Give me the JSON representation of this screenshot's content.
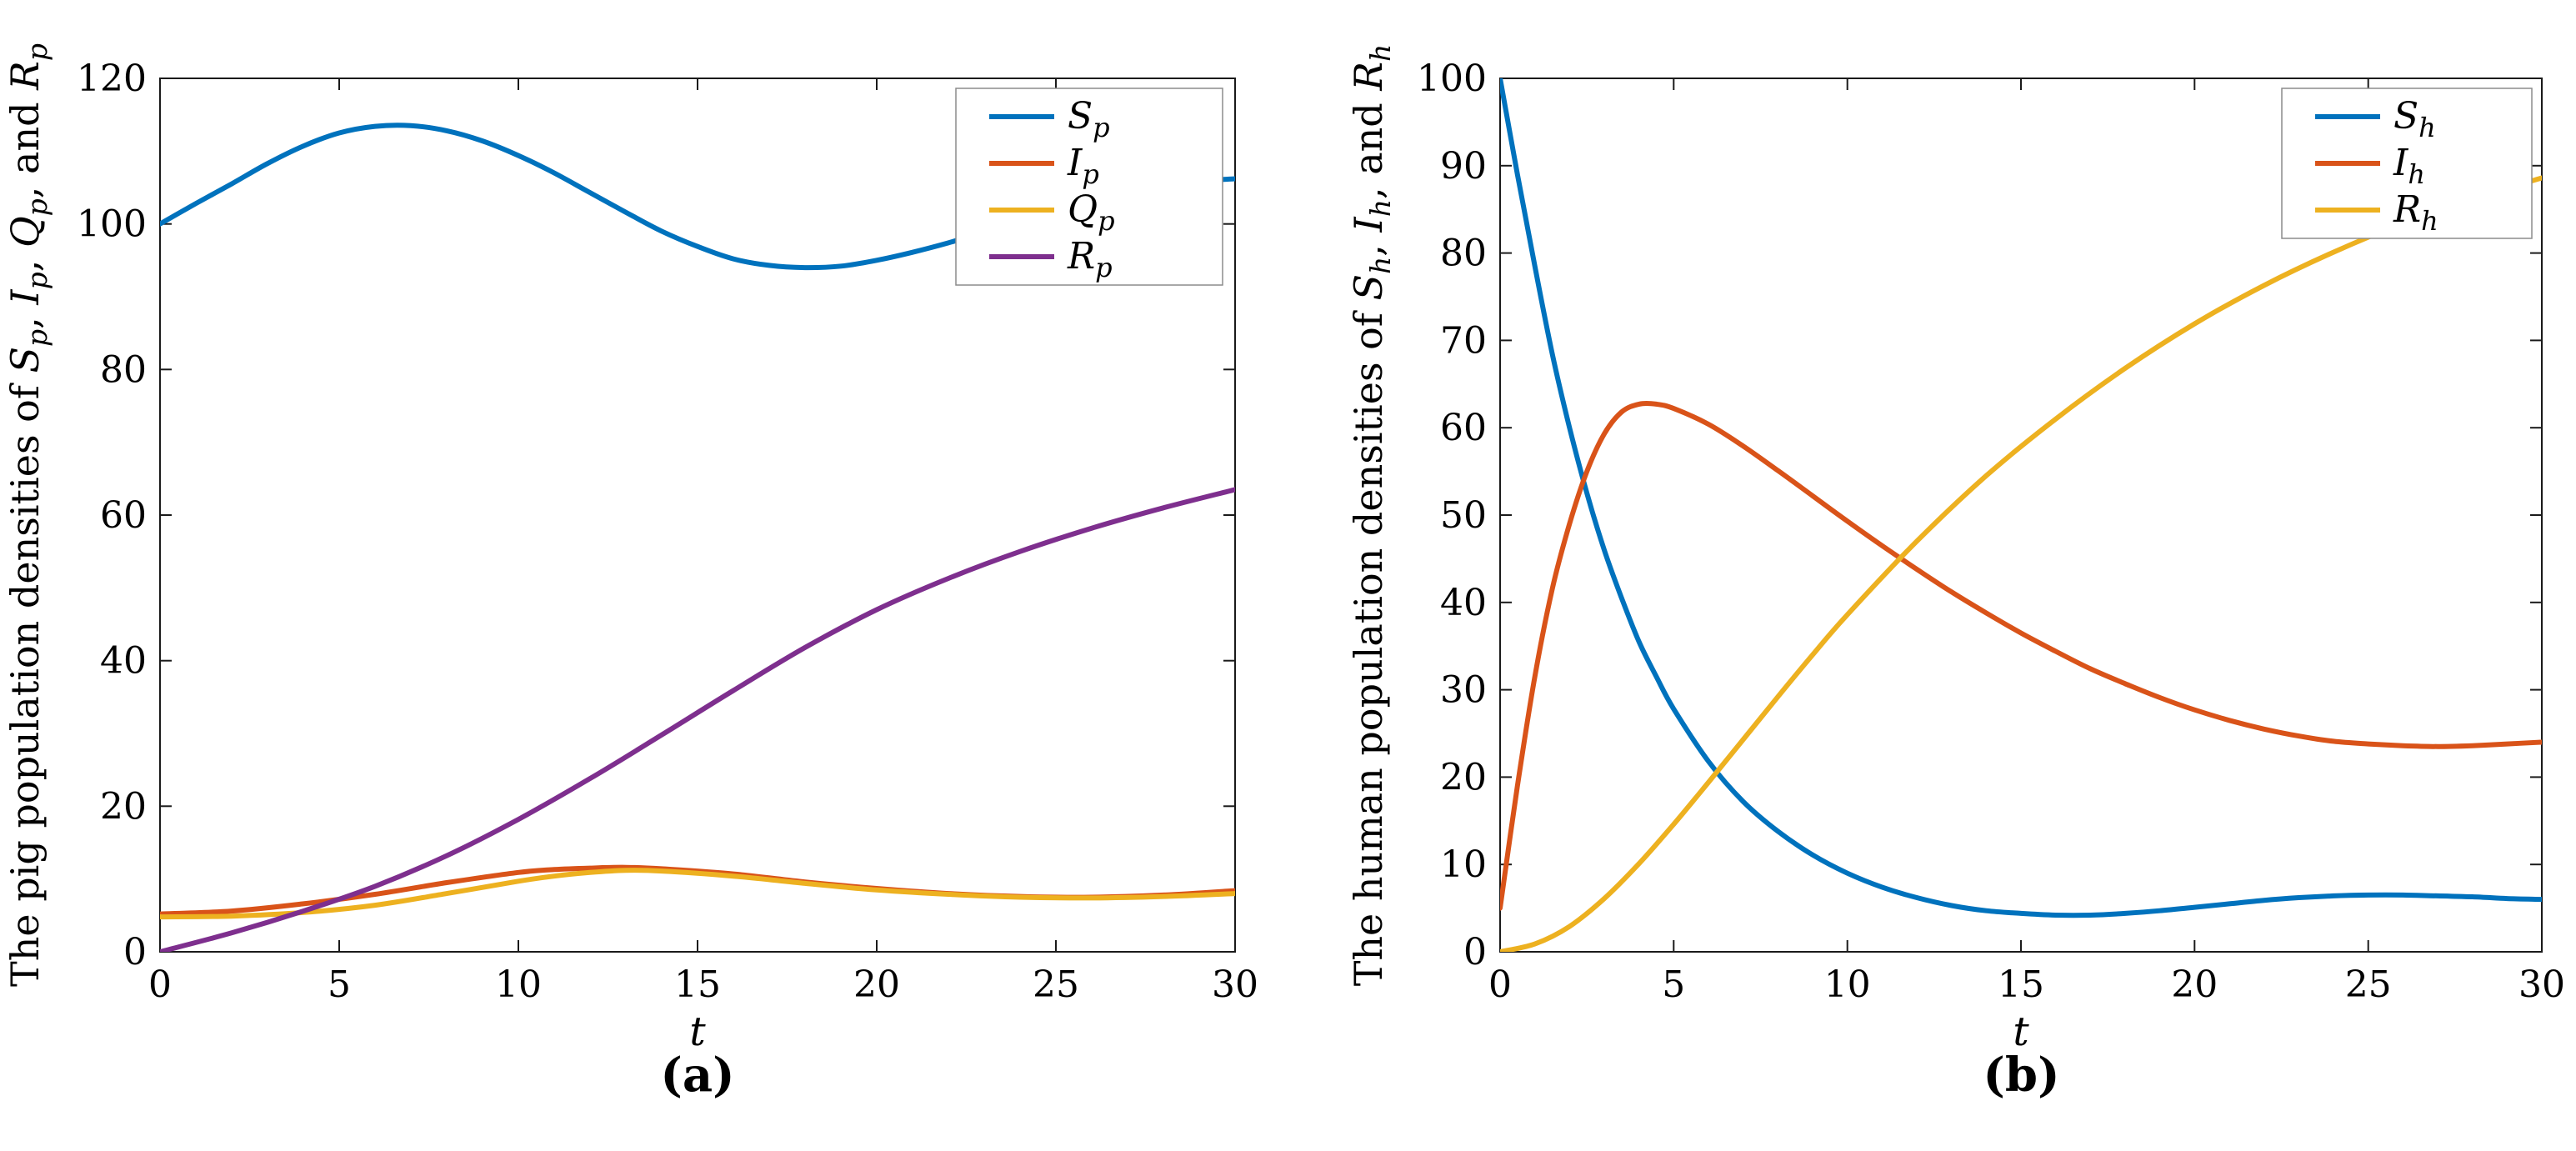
{
  "figure": {
    "captions": {
      "a": "(a)",
      "b": "(b)"
    },
    "colors": {
      "blue": "#0072BD",
      "orange": "#D95319",
      "yellow": "#EDB120",
      "purple": "#7E2F8E",
      "axis": "#1a1a1a",
      "text": "#000000",
      "legend_border": "#8c8c8c"
    }
  },
  "chart_data": [
    {
      "id": "a",
      "type": "line",
      "title": "",
      "xlabel": "t",
      "ylabel": "The pig population densities of S_p, I_p, Q_p, and R_p",
      "xlim": [
        0,
        30
      ],
      "ylim": [
        0,
        120
      ],
      "xticks": [
        0,
        5,
        10,
        15,
        20,
        25,
        30
      ],
      "yticks": [
        0,
        20,
        40,
        60,
        80,
        100,
        120
      ],
      "grid": false,
      "legend_position": "top-right",
      "series": [
        {
          "name": "S_p",
          "color": "#0072BD",
          "x": [
            0,
            1,
            2,
            3,
            4,
            5,
            6,
            7,
            8,
            9,
            10,
            11,
            12,
            13,
            14,
            15,
            16,
            17,
            18,
            19,
            20,
            21,
            22,
            23,
            24,
            25,
            26,
            27,
            28,
            29,
            30
          ],
          "y": [
            100,
            102.8,
            105.5,
            108.3,
            110.7,
            112.5,
            113.4,
            113.5,
            112.8,
            111.4,
            109.4,
            107,
            104.3,
            101.6,
            99,
            96.9,
            95.2,
            94.3,
            94,
            94.2,
            95,
            96.1,
            97.4,
            98.9,
            100.4,
            101.9,
            103.3,
            104.4,
            105.3,
            105.9,
            106.2
          ]
        },
        {
          "name": "I_p",
          "color": "#D95319",
          "x": [
            0,
            2,
            4,
            6,
            8,
            10,
            11,
            12,
            13,
            14,
            16,
            18,
            20,
            22,
            24,
            26,
            28,
            30
          ],
          "y": [
            5.2,
            5.6,
            6.6,
            7.9,
            9.5,
            10.9,
            11.3,
            11.5,
            11.6,
            11.4,
            10.7,
            9.6,
            8.7,
            8.0,
            7.6,
            7.5,
            7.8,
            8.4
          ]
        },
        {
          "name": "Q_p",
          "color": "#EDB120",
          "x": [
            0,
            2,
            4,
            6,
            8,
            10,
            11,
            12,
            13,
            14,
            16,
            18,
            20,
            22,
            24,
            26,
            28,
            30
          ],
          "y": [
            4.8,
            4.9,
            5.4,
            6.4,
            8.0,
            9.7,
            10.4,
            10.9,
            11.2,
            11.1,
            10.4,
            9.4,
            8.5,
            7.9,
            7.5,
            7.4,
            7.6,
            8.0
          ]
        },
        {
          "name": "R_p",
          "color": "#7E2F8E",
          "x": [
            0,
            2,
            4,
            6,
            8,
            10,
            12,
            14,
            16,
            18,
            20,
            22,
            24,
            26,
            28,
            30
          ],
          "y": [
            0,
            2.6,
            5.6,
            9.0,
            13.2,
            18.2,
            23.8,
            29.8,
            35.9,
            41.8,
            47.0,
            51.3,
            55.0,
            58.2,
            61.0,
            63.5
          ]
        }
      ]
    },
    {
      "id": "b",
      "type": "line",
      "title": "",
      "xlabel": "t",
      "ylabel": "The human population densities of S_h, I_h, and R_h",
      "xlim": [
        0,
        30
      ],
      "ylim": [
        0,
        100
      ],
      "xticks": [
        0,
        5,
        10,
        15,
        20,
        25,
        30
      ],
      "yticks": [
        0,
        10,
        20,
        30,
        40,
        50,
        60,
        70,
        80,
        90,
        100
      ],
      "grid": false,
      "legend_position": "top-right",
      "series": [
        {
          "name": "S_h",
          "color": "#0072BD",
          "x": [
            0,
            0.5,
            1,
            1.5,
            2,
            2.5,
            3,
            3.5,
            4,
            4.5,
            5,
            6,
            7,
            8,
            9,
            10,
            11,
            12,
            13,
            14,
            15,
            16,
            17,
            18,
            19,
            20,
            21,
            22,
            23,
            24,
            25,
            26,
            27,
            28,
            29,
            30
          ],
          "y": [
            100,
            89,
            78.5,
            68.5,
            60,
            52.5,
            46,
            40.5,
            35.5,
            31.5,
            27.8,
            21.8,
            17.2,
            13.8,
            11.1,
            9.0,
            7.4,
            6.2,
            5.3,
            4.7,
            4.4,
            4.2,
            4.2,
            4.4,
            4.7,
            5.1,
            5.5,
            5.9,
            6.2,
            6.4,
            6.5,
            6.5,
            6.4,
            6.3,
            6.1,
            6.0
          ]
        },
        {
          "name": "I_h",
          "color": "#D95319",
          "x": [
            0,
            0.5,
            1,
            1.5,
            2,
            2.5,
            3,
            3.5,
            4,
            4.5,
            5,
            6,
            7,
            8,
            9,
            10,
            11,
            12,
            13,
            14,
            15,
            16,
            17,
            18,
            19,
            20,
            21,
            22,
            23,
            24,
            25,
            26,
            27,
            28,
            29,
            30
          ],
          "y": [
            5,
            19,
            31.5,
            41.5,
            49,
            55,
            59.3,
            61.8,
            62.7,
            62.7,
            62.2,
            60.4,
            57.9,
            55.1,
            52.2,
            49.3,
            46.5,
            43.8,
            41.2,
            38.8,
            36.5,
            34.4,
            32.4,
            30.7,
            29.1,
            27.7,
            26.5,
            25.5,
            24.7,
            24.1,
            23.8,
            23.6,
            23.5,
            23.6,
            23.8,
            24
          ]
        },
        {
          "name": "R_h",
          "color": "#EDB120",
          "x": [
            0,
            1,
            2,
            3,
            4,
            5,
            6,
            7,
            8,
            9,
            10,
            12,
            14,
            16,
            18,
            20,
            22,
            24,
            26,
            28,
            30
          ],
          "y": [
            0,
            0.9,
            2.9,
            6.1,
            10.1,
            14.6,
            19.4,
            24.3,
            29.2,
            34,
            38.6,
            47,
            54.5,
            61,
            66.8,
            71.9,
            76.3,
            80.1,
            83.4,
            86.2,
            88.6
          ]
        }
      ]
    }
  ]
}
